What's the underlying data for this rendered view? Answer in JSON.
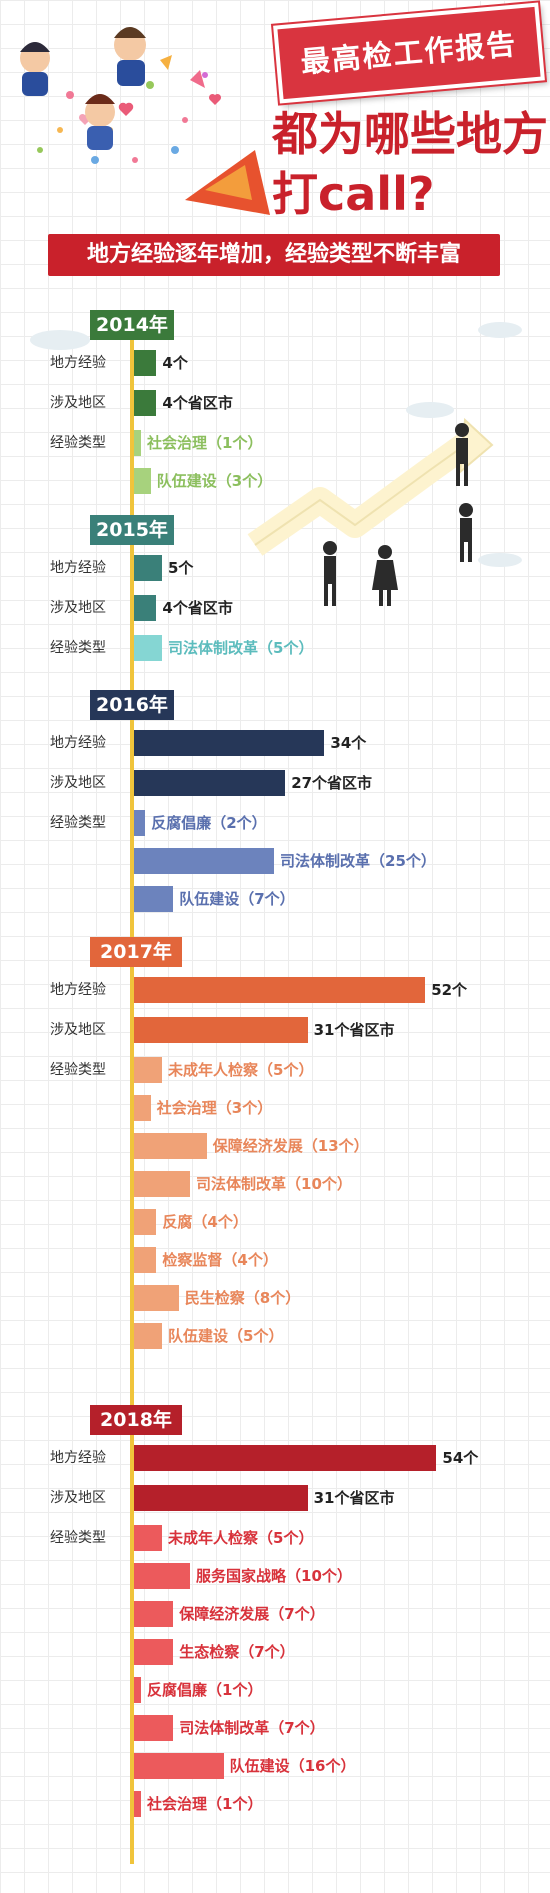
{
  "header": {
    "badge": "最高检工作报告",
    "headline_line1": "都为哪些地方",
    "headline_line2": "打call?",
    "subtitle": "地方经验逐年增加，经验类型不断丰富"
  },
  "colors": {
    "brand_red": "#c9212b",
    "timeline": "#f0c43b"
  },
  "chart_data": {
    "type": "bar",
    "orientation": "horizontal",
    "row_labels": [
      "地方经验",
      "涉及地区",
      "经验类型"
    ],
    "years": [
      {
        "label": "2014年",
        "color_dark": "#3b7a3b",
        "color_light": "#a7d27d",
        "color_text": "#8cbf5e",
        "summary": [
          {
            "value": 4,
            "label": "4个"
          },
          {
            "value": 4,
            "label": "4个省区市"
          }
        ],
        "types": [
          {
            "value": 1,
            "label": "社会治理（1个）"
          },
          {
            "value": 3,
            "label": "队伍建设（3个）"
          }
        ]
      },
      {
        "label": "2015年",
        "color_dark": "#3a8079",
        "color_light": "#85d6d3",
        "color_text": "#5cbcbd",
        "summary": [
          {
            "value": 5,
            "label": "5个"
          },
          {
            "value": 4,
            "label": "4个省区市"
          }
        ],
        "types": [
          {
            "value": 5,
            "label": "司法体制改革（5个）"
          }
        ]
      },
      {
        "label": "2016年",
        "color_dark": "#263758",
        "color_light": "#6c83bd",
        "color_text": "#5a70ae",
        "summary": [
          {
            "value": 34,
            "label": "34个"
          },
          {
            "value": 27,
            "label": "27个省区市"
          }
        ],
        "types": [
          {
            "value": 2,
            "label": "反腐倡廉（2个）"
          },
          {
            "value": 25,
            "label": "司法体制改革（25个）"
          },
          {
            "value": 7,
            "label": "队伍建设（7个）"
          }
        ]
      },
      {
        "label": "2017年",
        "color_dark": "#e2663b",
        "color_light": "#f0a277",
        "color_text": "#e8865a",
        "summary": [
          {
            "value": 52,
            "label": "52个"
          },
          {
            "value": 31,
            "label": "31个省区市"
          }
        ],
        "types": [
          {
            "value": 5,
            "label": "未成年人检察（5个）"
          },
          {
            "value": 3,
            "label": "社会治理（3个）"
          },
          {
            "value": 13,
            "label": "保障经济发展（13个）"
          },
          {
            "value": 10,
            "label": "司法体制改革（10个）"
          },
          {
            "value": 4,
            "label": "反腐（4个）"
          },
          {
            "value": 4,
            "label": "检察监督（4个）"
          },
          {
            "value": 8,
            "label": "民生检察（8个）"
          },
          {
            "value": 5,
            "label": "队伍建设（5个）"
          }
        ]
      },
      {
        "label": "2018年",
        "color_dark": "#b5202a",
        "color_light": "#ec5a5c",
        "color_text": "#d8323b",
        "summary": [
          {
            "value": 54,
            "label": "54个"
          },
          {
            "value": 31,
            "label": "31个省区市"
          }
        ],
        "types": [
          {
            "value": 5,
            "label": "未成年人检察（5个）"
          },
          {
            "value": 10,
            "label": "服务国家战略（10个）"
          },
          {
            "value": 7,
            "label": "保障经济发展（7个）"
          },
          {
            "value": 7,
            "label": "生态检察（7个）"
          },
          {
            "value": 1,
            "label": "反腐倡廉（1个）"
          },
          {
            "value": 7,
            "label": "司法体制改革（7个）"
          },
          {
            "value": 16,
            "label": "队伍建设（16个）"
          },
          {
            "value": 1,
            "label": "社会治理（1个）"
          }
        ]
      }
    ]
  }
}
